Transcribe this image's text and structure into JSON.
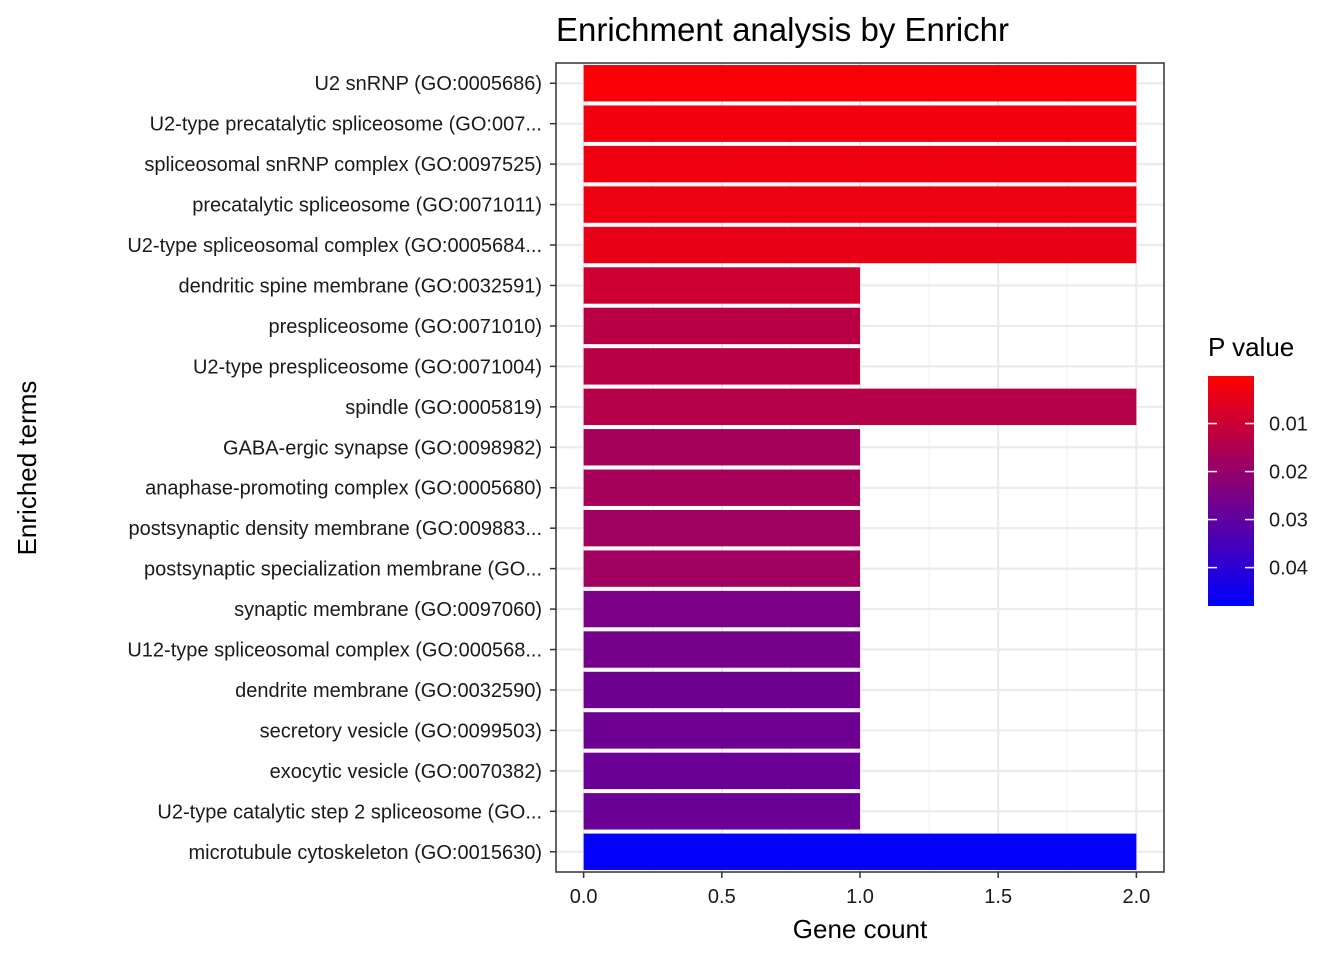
{
  "chart_data": {
    "type": "bar",
    "orientation": "horizontal",
    "title": "Enrichment analysis by Enrichr",
    "xlabel": "Gene count",
    "ylabel": "Enriched terms",
    "xlim": [
      -0.1,
      2.1
    ],
    "x_ticks": [
      "0.0",
      "0.5",
      "1.0",
      "1.5",
      "2.0"
    ],
    "grid": true,
    "categories": [
      "U2 snRNP (GO:0005686)",
      "U2-type precatalytic spliceosome (GO:007...",
      "spliceosomal snRNP complex (GO:0097525)",
      "precatalytic spliceosome (GO:0071011)",
      "U2-type spliceosomal complex (GO:0005684...",
      "dendritic spine membrane (GO:0032591)",
      "prespliceosome (GO:0071010)",
      "U2-type prespliceosome (GO:0071004)",
      "spindle (GO:0005819)",
      "GABA-ergic synapse (GO:0098982)",
      "anaphase-promoting complex (GO:0005680)",
      "postsynaptic density membrane (GO:009883...",
      "postsynaptic specialization membrane (GO...",
      "synaptic membrane (GO:0097060)",
      "U12-type spliceosomal complex (GO:000568...",
      "dendrite membrane (GO:0032590)",
      "secretory vesicle (GO:0099503)",
      "exocytic vesicle (GO:0070382)",
      "U2-type catalytic step 2 spliceosome (GO...",
      "microtubule cytoskeleton (GO:0015630)"
    ],
    "values": [
      2,
      2,
      2,
      2,
      2,
      1,
      1,
      1,
      2,
      1,
      1,
      1,
      1,
      1,
      1,
      1,
      1,
      1,
      1,
      2
    ],
    "p_values": [
      0.0012,
      0.0025,
      0.0032,
      0.0035,
      0.0045,
      0.0093,
      0.013,
      0.013,
      0.014,
      0.017,
      0.017,
      0.018,
      0.018,
      0.025,
      0.026,
      0.027,
      0.0275,
      0.028,
      0.028,
      0.047
    ],
    "legend": {
      "title": "P value",
      "placement": "right",
      "type": "colorbar",
      "range": [
        0.0001,
        0.048
      ],
      "ticks": [
        0.01,
        0.02,
        0.03,
        0.04
      ],
      "tick_labels": [
        "0.01",
        "0.02",
        "0.03",
        "0.04"
      ],
      "color_low": "#ff0000",
      "color_high": "#0000ff"
    }
  }
}
